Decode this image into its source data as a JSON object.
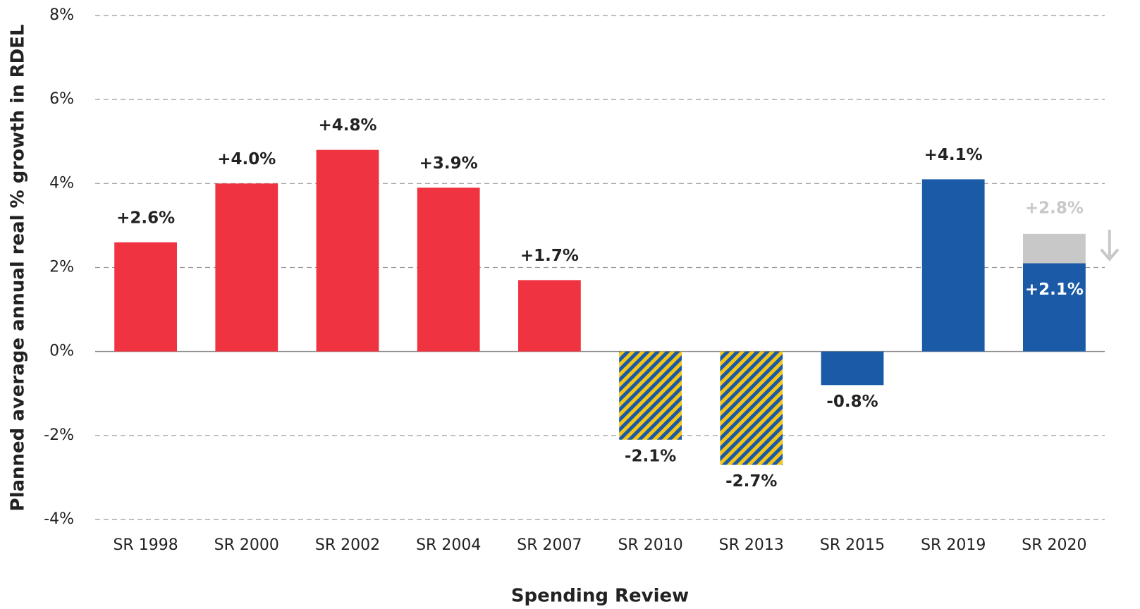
{
  "chart_data": {
    "type": "bar",
    "x_label": "Spending Review",
    "y_label": "Planned average annual real % growth in RDEL",
    "categories": [
      "SR 1998",
      "SR 2000",
      "SR 2002",
      "SR 2004",
      "SR 2007",
      "SR 2010",
      "SR 2013",
      "SR 2015",
      "SR 2019",
      "SR 2020"
    ],
    "series": [
      {
        "values": [
          2.6,
          4.0,
          4.8,
          3.9,
          1.7,
          -2.1,
          -2.7,
          -0.8,
          4.1,
          2.1
        ],
        "value_labels": [
          "+2.6%",
          "+4.0%",
          "+4.8%",
          "+3.9%",
          "+1.7%",
          "-2.1%",
          "-2.7%",
          "-0.8%",
          "+4.1%",
          "+2.1%"
        ],
        "colors": [
          "#ef3340",
          "#ef3340",
          "#ef3340",
          "#ef3340",
          "#ef3340",
          "#1b5aa6",
          "#1b5aa6",
          "#1b5aa6",
          "#1b5aa6",
          "#1b5aa6"
        ],
        "hatched": [
          false,
          false,
          false,
          false,
          false,
          true,
          true,
          false,
          false,
          false
        ],
        "hatch_colors": [
          "#f5c518",
          "#1b5aa6"
        ]
      },
      {
        "values": [
          null,
          null,
          null,
          null,
          null,
          null,
          null,
          null,
          null,
          2.8
        ],
        "value_labels": [
          null,
          null,
          null,
          null,
          null,
          null,
          null,
          null,
          null,
          "+2.8%"
        ],
        "color": "#c8c8c8"
      }
    ],
    "ylim": [
      -4,
      8
    ],
    "yticks": [
      {
        "value": -4,
        "label": "-4%"
      },
      {
        "value": -2,
        "label": "-2%"
      },
      {
        "value": 0,
        "label": "0%"
      },
      {
        "value": 2,
        "label": "2%"
      },
      {
        "value": 4,
        "label": "4%"
      },
      {
        "value": 6,
        "label": "6%"
      },
      {
        "value": 8,
        "label": "8%"
      }
    ],
    "grid": true
  }
}
